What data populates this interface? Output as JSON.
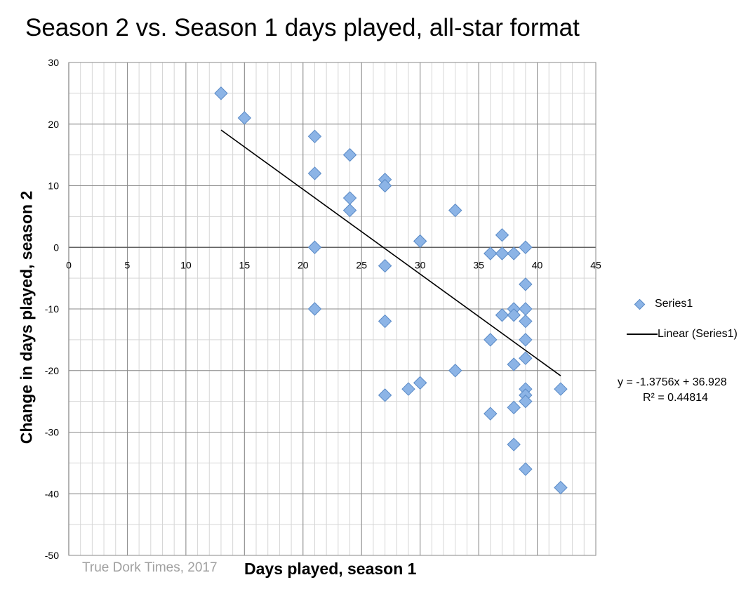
{
  "chart_data": {
    "type": "scatter",
    "title": "Season 2 vs. Season 1 days played, all-star format",
    "xlabel": "Days played, season 1",
    "ylabel": "Change in days played, season 2",
    "credit": "True Dork Times, 2017",
    "xlim": [
      0,
      45
    ],
    "ylim": [
      -50,
      30
    ],
    "x_ticks": [
      0,
      5,
      10,
      15,
      20,
      25,
      30,
      35,
      40,
      45
    ],
    "y_ticks": [
      30,
      20,
      10,
      0,
      -10,
      -20,
      -30,
      -40,
      -50
    ],
    "x_minor_step": 1,
    "y_minor_step": 5,
    "grid": true,
    "legend_position": "right",
    "series": [
      {
        "name": "Series1",
        "color": "#8cb4e6",
        "points": [
          {
            "x": 13,
            "y": 25
          },
          {
            "x": 15,
            "y": 21
          },
          {
            "x": 21,
            "y": 18
          },
          {
            "x": 21,
            "y": 12
          },
          {
            "x": 21,
            "y": 0
          },
          {
            "x": 21,
            "y": -10
          },
          {
            "x": 24,
            "y": 15
          },
          {
            "x": 24,
            "y": 8
          },
          {
            "x": 24,
            "y": 6
          },
          {
            "x": 27,
            "y": 11
          },
          {
            "x": 27,
            "y": 10
          },
          {
            "x": 27,
            "y": -3
          },
          {
            "x": 27,
            "y": -12
          },
          {
            "x": 27,
            "y": -24
          },
          {
            "x": 29,
            "y": -23
          },
          {
            "x": 30,
            "y": 1
          },
          {
            "x": 30,
            "y": -22
          },
          {
            "x": 33,
            "y": 6
          },
          {
            "x": 33,
            "y": -20
          },
          {
            "x": 36,
            "y": -1
          },
          {
            "x": 36,
            "y": -15
          },
          {
            "x": 36,
            "y": -27
          },
          {
            "x": 37,
            "y": 2
          },
          {
            "x": 37,
            "y": -1
          },
          {
            "x": 37,
            "y": -11
          },
          {
            "x": 38,
            "y": -1
          },
          {
            "x": 38,
            "y": -10
          },
          {
            "x": 38,
            "y": -11
          },
          {
            "x": 38,
            "y": -19
          },
          {
            "x": 38,
            "y": -26
          },
          {
            "x": 38,
            "y": -32
          },
          {
            "x": 39,
            "y": 0
          },
          {
            "x": 39,
            "y": -6
          },
          {
            "x": 39,
            "y": -10
          },
          {
            "x": 39,
            "y": -12
          },
          {
            "x": 39,
            "y": -15
          },
          {
            "x": 39,
            "y": -18
          },
          {
            "x": 39,
            "y": -23
          },
          {
            "x": 39,
            "y": -24
          },
          {
            "x": 39,
            "y": -25
          },
          {
            "x": 39,
            "y": -36
          },
          {
            "x": 42,
            "y": -23
          },
          {
            "x": 42,
            "y": -39
          }
        ]
      }
    ],
    "trendline": {
      "name": "Linear (Series1)",
      "color": "#000000",
      "slope": -1.3756,
      "intercept": 36.928,
      "x_range": [
        13,
        42
      ],
      "equation": "y = -1.3756x + 36.928",
      "r_squared": "R² = 0.44814"
    }
  }
}
